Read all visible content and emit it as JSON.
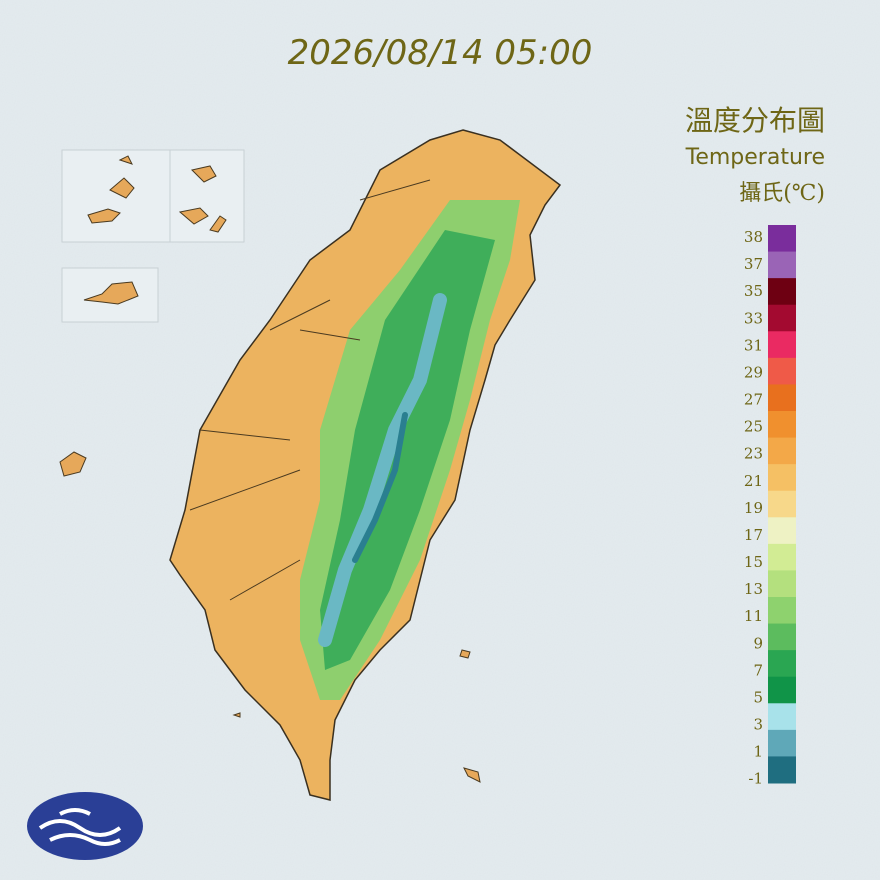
{
  "header": {
    "timestamp": "2026/08/14 05:00"
  },
  "legend": {
    "title": "溫度分布圖",
    "subtitle": "Temperature",
    "unit": "攝氏(℃)",
    "ticks": [
      38,
      37,
      35,
      33,
      31,
      29,
      27,
      25,
      23,
      21,
      19,
      17,
      15,
      13,
      11,
      9,
      7,
      5,
      3,
      1,
      -1
    ],
    "colors": [
      "#7a2d9c",
      "#9a64b6",
      "#6e0012",
      "#a30a30",
      "#ea2a62",
      "#ef5a48",
      "#e8701e",
      "#f0902e",
      "#f3a848",
      "#f5c064",
      "#f7d88a",
      "#eef2c4",
      "#d2ec94",
      "#b4e07e",
      "#8ed26e",
      "#5cbc5e",
      "#2aa652",
      "#109448",
      "#a8e2ea",
      "#5fa8b8",
      "#1f6e80"
    ]
  }
}
